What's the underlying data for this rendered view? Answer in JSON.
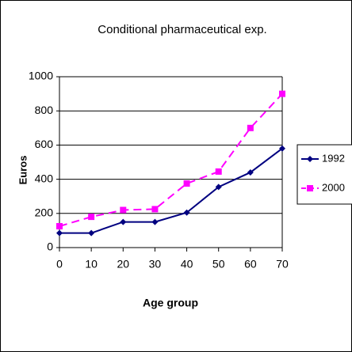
{
  "chart_data": {
    "type": "line",
    "title": "Conditional pharmaceutical exp.",
    "xlabel": "Age group",
    "ylabel": "Euros",
    "x": [
      0,
      10,
      20,
      30,
      40,
      50,
      60,
      70
    ],
    "series": [
      {
        "name": "1992",
        "color": "#000080",
        "dash": false,
        "marker": "diamond",
        "values": [
          85,
          85,
          150,
          150,
          205,
          355,
          440,
          580
        ]
      },
      {
        "name": "2000",
        "color": "#ff00ff",
        "dash": true,
        "marker": "square",
        "values": [
          125,
          180,
          220,
          225,
          375,
          445,
          700,
          900
        ]
      }
    ],
    "xlim": [
      0,
      70
    ],
    "xticks": [
      0,
      10,
      20,
      30,
      40,
      50,
      60,
      70
    ],
    "ylim": [
      0,
      1000
    ],
    "yticks": [
      0,
      200,
      400,
      600,
      800,
      1000
    ],
    "grid": true,
    "legend": "right"
  }
}
